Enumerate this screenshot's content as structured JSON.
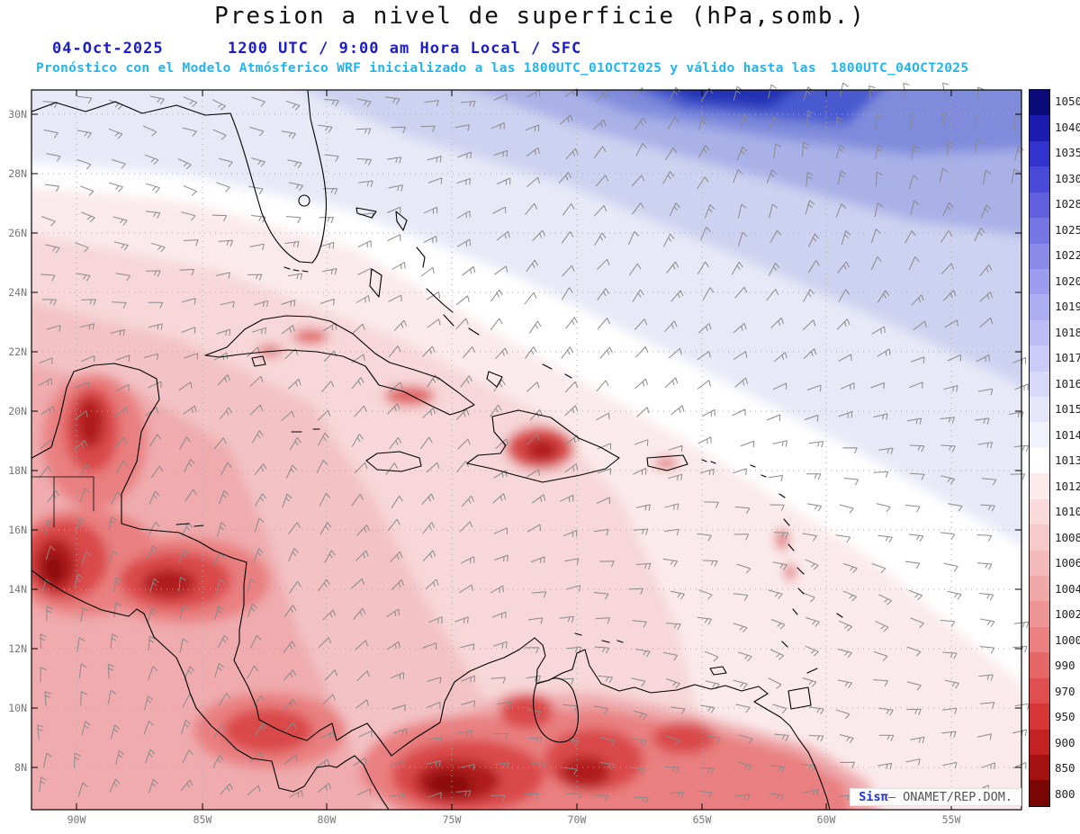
{
  "title": "Presion a nivel de superficie (hPa,somb.)",
  "header": {
    "date": "04-Oct-2025",
    "utc_line": "1200 UTC / 9:00 am Hora Local / SFC",
    "forecast_line": "Pronóstico con el Modelo Atmósferico WRF inicializado a las 1800UTC_01OCT2025 y válido hasta las",
    "valid_until": "1800UTC_04OCT2025"
  },
  "map": {
    "lat_labels": [
      "30N",
      "28N",
      "26N",
      "24N",
      "22N",
      "20N",
      "18N",
      "16N",
      "14N",
      "12N",
      "10N",
      "8N"
    ],
    "lon_labels": [
      "90W",
      "85W",
      "80W",
      "75W",
      "70W",
      "65W",
      "60W",
      "55W"
    ]
  },
  "colorbar": {
    "units": "hPa",
    "levels": [
      {
        "label": "1050",
        "color": "#0a0a78"
      },
      {
        "label": "1040",
        "color": "#1b1bb0"
      },
      {
        "label": "1035",
        "color": "#3232cd"
      },
      {
        "label": "1030",
        "color": "#4a4ad8"
      },
      {
        "label": "1028",
        "color": "#6060de"
      },
      {
        "label": "1025",
        "color": "#7575e4"
      },
      {
        "label": "1022",
        "color": "#8a8ae9"
      },
      {
        "label": "1020",
        "color": "#9c9cee"
      },
      {
        "label": "1019",
        "color": "#adadf2"
      },
      {
        "label": "1018",
        "color": "#bdbdf5"
      },
      {
        "label": "1017",
        "color": "#cbcbf7"
      },
      {
        "label": "1016",
        "color": "#d8d8f9"
      },
      {
        "label": "1015",
        "color": "#e6e6fb"
      },
      {
        "label": "1014",
        "color": "#f2f2fd"
      },
      {
        "label": "1013",
        "color": "#ffffff"
      },
      {
        "label": "1012",
        "color": "#fdeaea"
      },
      {
        "label": "1010",
        "color": "#fadada"
      },
      {
        "label": "1008",
        "color": "#f7caca"
      },
      {
        "label": "1006",
        "color": "#f4baba"
      },
      {
        "label": "1004",
        "color": "#f1a8a8"
      },
      {
        "label": "1002",
        "color": "#ee9595"
      },
      {
        "label": "1000",
        "color": "#ea8080"
      },
      {
        "label": "990",
        "color": "#e56767"
      },
      {
        "label": "970",
        "color": "#df4f4f"
      },
      {
        "label": "950",
        "color": "#d63636"
      },
      {
        "label": "900",
        "color": "#c22222"
      },
      {
        "label": "850",
        "color": "#a31111"
      },
      {
        "label": "800",
        "color": "#7a0505"
      }
    ]
  },
  "attribution": {
    "brand": "Sisπ",
    "separator": "— ",
    "source": "ONAMET/REP.DOM."
  },
  "wind_barbs": {
    "color": "#8a8a8a"
  },
  "chart_data": {
    "type": "heatmap",
    "title": "Presion a nivel de superficie (hPa,somb.)",
    "model": "WRF",
    "initialized": "1800UTC_01OCT2025",
    "valid": "1800UTC_04OCT2025",
    "x_ticks": [
      "90W",
      "85W",
      "80W",
      "75W",
      "70W",
      "65W",
      "60W",
      "55W"
    ],
    "y_ticks": [
      "30N",
      "28N",
      "26N",
      "24N",
      "22N",
      "20N",
      "18N",
      "16N",
      "14N",
      "12N",
      "10N",
      "8N"
    ],
    "units": "hPa",
    "levels_hpa": [
      1050,
      1040,
      1035,
      1030,
      1028,
      1025,
      1022,
      1020,
      1019,
      1018,
      1017,
      1016,
      1015,
      1014,
      1013,
      1012,
      1010,
      1008,
      1006,
      1004,
      1002,
      1000,
      990,
      970,
      950,
      900,
      850,
      800
    ],
    "summary": "High surface pressure (1016-1022 hPa, blue shading) over the NW Atlantic in the upper-right; near-1013/1014 hPa white band running diagonally through Florida and the Bahamas; lower pressure (1000-1012 hPa, pink to dark red shading) over the western Caribbean, Yucatan, Central America, Hispaniola and northern South America, with deepest reds over Central America and Colombia/Venezuela"
  }
}
